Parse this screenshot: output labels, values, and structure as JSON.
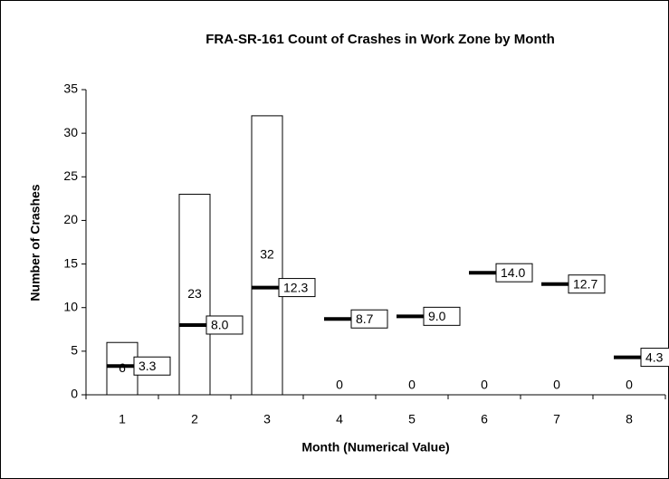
{
  "chart_data": {
    "type": "bar",
    "title": "FRA-SR-161 Count of Crashes in Work Zone by Month",
    "xlabel": "Month (Numerical Value)",
    "ylabel": "Number of Crashes",
    "categories": [
      "1",
      "2",
      "3",
      "4",
      "5",
      "6",
      "7",
      "8"
    ],
    "series": [
      {
        "type": "bar",
        "color": "#ffffff",
        "values": [
          6,
          23,
          32,
          0,
          0,
          0,
          0,
          0
        ]
      },
      {
        "type": "dash",
        "color": "#000000",
        "values": [
          3.3,
          8.0,
          12.3,
          8.7,
          9.0,
          14.0,
          12.7,
          4.3
        ],
        "value_labels": [
          "3.3",
          "8.0",
          "12.3",
          "8.7",
          "9.0",
          "14.0",
          "12.7",
          "4.3"
        ]
      }
    ],
    "ylim": [
      0,
      35
    ],
    "yticks": [
      0,
      5,
      10,
      15,
      20,
      25,
      30,
      35
    ],
    "grid": false
  }
}
